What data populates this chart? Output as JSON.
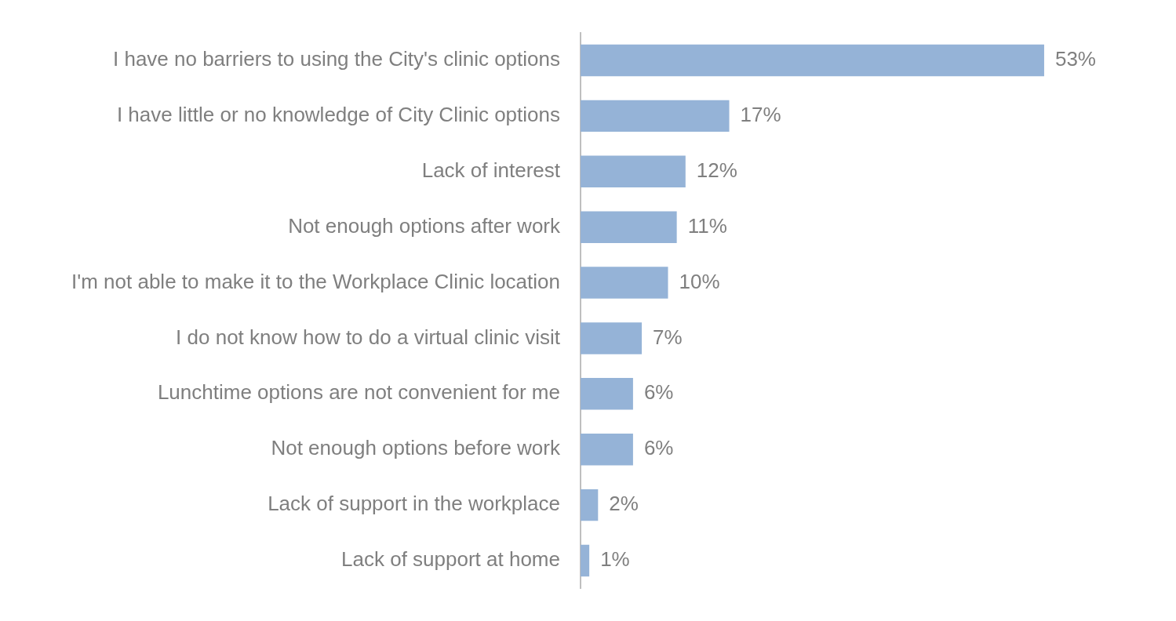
{
  "chart_data": {
    "type": "bar",
    "orientation": "horizontal",
    "categories": [
      "I have no barriers to using the City's clinic options",
      "I have little or no knowledge of City Clinic options",
      "Lack of interest",
      "Not enough options after work",
      "I'm not able to make it to the Workplace Clinic location",
      "I do not know how to do a virtual clinic visit",
      "Lunchtime options are not convenient for me",
      "Not enough options before work",
      "Lack of support in the workplace",
      "Lack of support at home"
    ],
    "values": [
      53,
      17,
      12,
      11,
      10,
      7,
      6,
      6,
      2,
      1
    ],
    "value_labels": [
      "53%",
      "17%",
      "12%",
      "11%",
      "10%",
      "7%",
      "6%",
      "6%",
      "2%",
      "1%"
    ],
    "color": "#95b3d7",
    "legend": false
  }
}
